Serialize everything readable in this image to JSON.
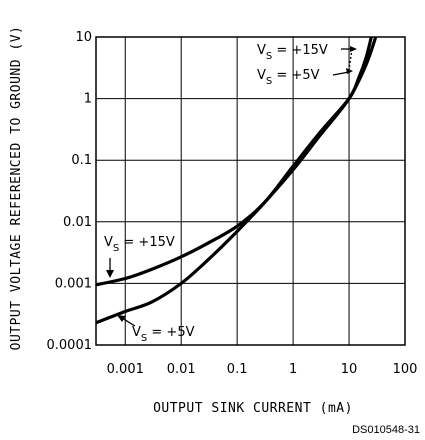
{
  "chart_data": {
    "type": "line",
    "title": "",
    "xlabel": "OUTPUT SINK CURRENT (mA)",
    "ylabel": "OUTPUT VOLTAGE REFERENCED TO GROUND (V)",
    "x_scale": "log",
    "y_scale": "log",
    "xlim": [
      0.0003,
      100
    ],
    "ylim": [
      0.0001,
      10
    ],
    "grid": true,
    "x_ticks": [
      {
        "value": 0.001,
        "label": "0.001"
      },
      {
        "value": 0.01,
        "label": "0.01"
      },
      {
        "value": 0.1,
        "label": "0.1"
      },
      {
        "value": 1,
        "label": "1"
      },
      {
        "value": 10,
        "label": "10"
      },
      {
        "value": 100,
        "label": "100"
      }
    ],
    "y_ticks": [
      {
        "value": 0.0001,
        "label": "0.0001"
      },
      {
        "value": 0.001,
        "label": "0.001"
      },
      {
        "value": 0.01,
        "label": "0.01"
      },
      {
        "value": 0.1,
        "label": "0.1"
      },
      {
        "value": 1,
        "label": "1"
      },
      {
        "value": 10,
        "label": "10"
      }
    ],
    "series": [
      {
        "name": "VS = +15V",
        "x": [
          0.0003,
          0.001,
          0.003,
          0.01,
          0.03,
          0.1,
          0.3,
          1,
          3,
          10,
          15,
          20,
          25
        ],
        "y": [
          0.00095,
          0.0012,
          0.0017,
          0.0027,
          0.0045,
          0.0085,
          0.02,
          0.08,
          0.28,
          1.0,
          2.2,
          4.5,
          10
        ]
      },
      {
        "name": "VS = +5V",
        "x": [
          0.0003,
          0.001,
          0.003,
          0.01,
          0.03,
          0.1,
          0.3,
          1,
          3,
          10,
          20,
          30
        ],
        "y": [
          0.00023,
          0.00035,
          0.0005,
          0.001,
          0.0024,
          0.007,
          0.02,
          0.07,
          0.25,
          1.0,
          3.5,
          10
        ]
      }
    ]
  },
  "annotations": {
    "top_15": {
      "v": "V",
      "s": "S",
      "rest": " = +15V"
    },
    "top_5": {
      "v": "V",
      "s": "S",
      "rest": " = +5V"
    },
    "left_15": {
      "v": "V",
      "s": "S",
      "rest": " = +15V"
    },
    "bottom_5": {
      "v": "V",
      "s": "S",
      "rest": " = +5V"
    }
  },
  "figure_code": "DS010548-31"
}
